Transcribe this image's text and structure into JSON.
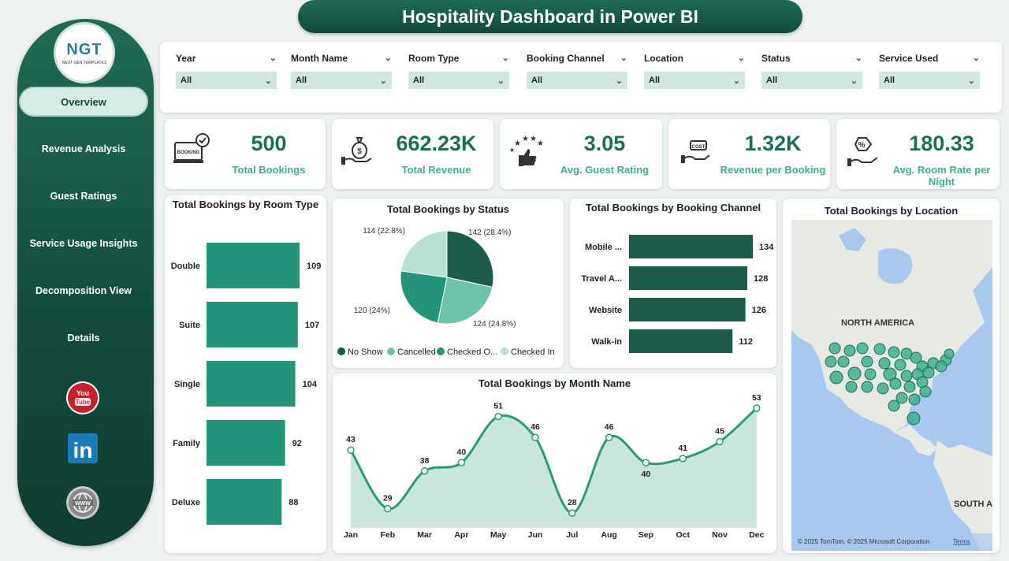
{
  "header": {
    "title": "Hospitality Dashboard in Power BI"
  },
  "logo": {
    "main_text": "NGT",
    "sub_text": "NEXT GEN TEMPLATES"
  },
  "sidebar": {
    "items": [
      {
        "label": "Overview",
        "active": true
      },
      {
        "label": "Revenue Analysis"
      },
      {
        "label": "Guest Ratings"
      },
      {
        "label": "Service Usage Insights"
      },
      {
        "label": "Decomposition View"
      },
      {
        "label": "Details"
      }
    ],
    "social": [
      "youtube-icon",
      "linkedin-icon",
      "globe-icon"
    ]
  },
  "filters": [
    {
      "label": "Year",
      "value": "All"
    },
    {
      "label": "Month Name",
      "value": "All"
    },
    {
      "label": "Room Type",
      "value": "All"
    },
    {
      "label": "Booking Channel",
      "value": "All"
    },
    {
      "label": "Location",
      "value": "All"
    },
    {
      "label": "Status",
      "value": "All"
    },
    {
      "label": "Service Used",
      "value": "All"
    }
  ],
  "kpis": [
    {
      "value": "500",
      "label": "Total Bookings",
      "icon": "booking-laptop-icon"
    },
    {
      "value": "662.23K",
      "label": "Total Revenue",
      "icon": "money-bag-hand-icon"
    },
    {
      "value": "3.05",
      "label": "Avg. Guest Rating",
      "icon": "rating-stars-icon"
    },
    {
      "value": "1.32K",
      "label": "Revenue per Booking",
      "icon": "cost-hand-icon"
    },
    {
      "value": "180.33",
      "label": "Avg. Room Rate per Night",
      "icon": "discount-hand-icon"
    }
  ],
  "colors": {
    "dark_green": "#1c5a49",
    "mid_green": "#2a9a7a",
    "teal": "#23947a",
    "light": "#71c8b0",
    "pale": "#bfe3d7"
  },
  "chart_data": [
    {
      "type": "bar",
      "orientation": "horizontal",
      "title": "Total Bookings by Room Type",
      "categories": [
        "Double",
        "Suite",
        "Single",
        "Family",
        "Deluxe"
      ],
      "values": [
        109,
        107,
        104,
        92,
        88
      ],
      "color": "#23947a"
    },
    {
      "type": "pie",
      "title": "Total Bookings by Status",
      "slices": [
        {
          "name": "No Show",
          "value": 142,
          "label": "142 (28.4%)",
          "color": "#1c5a49"
        },
        {
          "name": "Cancelled",
          "value": 124,
          "label": "124 (24.8%)",
          "color": "#6cc4ad"
        },
        {
          "name": "Checked O...",
          "value": 120,
          "label": "120 (24%)",
          "color": "#23947a"
        },
        {
          "name": "Checked In",
          "value": 114,
          "label": "114 (22.8%)",
          "color": "#b8e1d4"
        }
      ],
      "legend_position": "bottom"
    },
    {
      "type": "bar",
      "orientation": "horizontal",
      "title": "Total Bookings by Booking Channel",
      "categories": [
        "Mobile ...",
        "Travel A...",
        "Website",
        "Walk-in"
      ],
      "values": [
        134,
        128,
        126,
        112
      ],
      "color": "#1c5a49"
    },
    {
      "type": "area",
      "title": "Total Bookings by Month Name",
      "categories": [
        "Jan",
        "Feb",
        "Mar",
        "Apr",
        "May",
        "Jun",
        "Jul",
        "Aug",
        "Sep",
        "Oct",
        "Nov",
        "Dec"
      ],
      "values": [
        43,
        29,
        38,
        40,
        51,
        46,
        28,
        46,
        40,
        41,
        45,
        53
      ],
      "line_color": "#2a9a7a",
      "fill_color": "#c8e6dc"
    }
  ],
  "map": {
    "title": "Total Bookings by Location",
    "labels": [
      "NORTH AMERICA",
      "SOUTH A"
    ],
    "attribution": "© 2025 TomTom, © 2025 Microsoft Corporation",
    "terms": "Terms"
  }
}
